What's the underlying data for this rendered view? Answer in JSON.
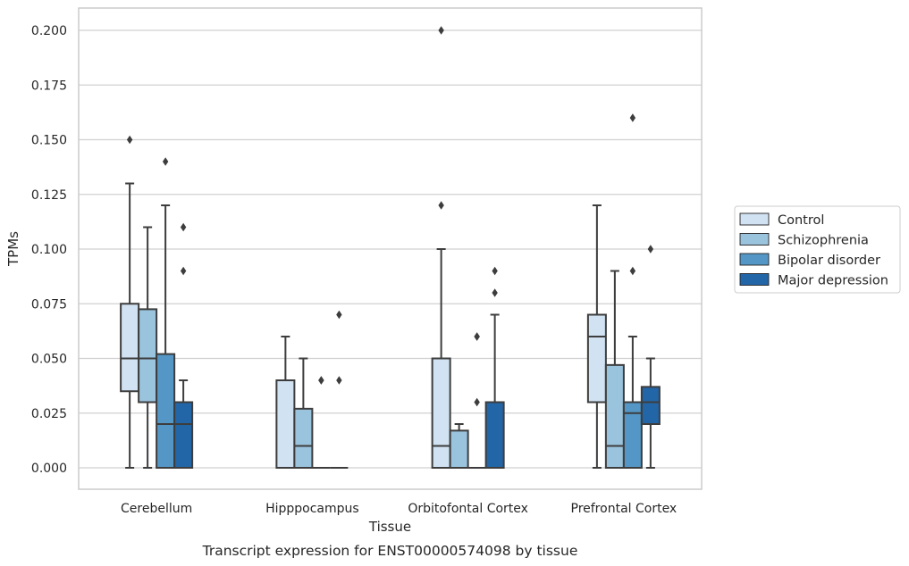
{
  "chart_data": {
    "type": "box",
    "title": "",
    "caption": "Transcript expression for ENST00000574098 by tissue",
    "xlabel": "Tissue",
    "ylabel": "TPMs",
    "ylim": [
      -0.01,
      0.21
    ],
    "yticks": [
      "0.000",
      "0.025",
      "0.050",
      "0.075",
      "0.100",
      "0.125",
      "0.150",
      "0.175",
      "0.200"
    ],
    "grid": "horizontal",
    "legend_position": "right",
    "categories": [
      "Cerebellum",
      "Hipppocampus",
      "Orbitofontal Cortex",
      "Prefrontal Cortex"
    ],
    "series": [
      {
        "name": "Control",
        "color": "#d1e2f2",
        "boxes": [
          {
            "min": 0.0,
            "q1": 0.035,
            "median": 0.05,
            "q3": 0.075,
            "max": 0.13,
            "outliers": [
              0.15
            ]
          },
          {
            "min": 0.0,
            "q1": 0.0,
            "median": 0.0,
            "q3": 0.04,
            "max": 0.06,
            "outliers": []
          },
          {
            "min": 0.0,
            "q1": 0.0,
            "median": 0.01,
            "q3": 0.05,
            "max": 0.1,
            "outliers": [
              0.12,
              0.2
            ]
          },
          {
            "min": 0.0,
            "q1": 0.03,
            "median": 0.06,
            "q3": 0.07,
            "max": 0.12,
            "outliers": []
          }
        ]
      },
      {
        "name": "Schizophrenia",
        "color": "#9ac3dd",
        "boxes": [
          {
            "min": 0.0,
            "q1": 0.03,
            "median": 0.05,
            "q3": 0.0725,
            "max": 0.11,
            "outliers": []
          },
          {
            "min": 0.0,
            "q1": 0.0,
            "median": 0.01,
            "q3": 0.027,
            "max": 0.05,
            "outliers": []
          },
          {
            "min": 0.0,
            "q1": 0.0,
            "median": 0.0,
            "q3": 0.017,
            "max": 0.02,
            "outliers": []
          },
          {
            "min": 0.0,
            "q1": 0.0,
            "median": 0.01,
            "q3": 0.047,
            "max": 0.09,
            "outliers": []
          }
        ]
      },
      {
        "name": "Bipolar disorder",
        "color": "#5497c6",
        "boxes": [
          {
            "min": 0.0,
            "q1": 0.0,
            "median": 0.02,
            "q3": 0.052,
            "max": 0.12,
            "outliers": [
              0.14
            ]
          },
          {
            "min": 0.0,
            "q1": 0.0,
            "median": 0.0,
            "q3": 0.0,
            "max": 0.0,
            "outliers": [
              0.04,
              0.04
            ]
          },
          {
            "min": 0.0,
            "q1": 0.0,
            "median": 0.0,
            "q3": 0.0,
            "max": 0.0,
            "outliers": [
              0.03,
              0.06,
              0.06
            ]
          },
          {
            "min": 0.0,
            "q1": 0.0,
            "median": 0.025,
            "q3": 0.03,
            "max": 0.06,
            "outliers": [
              0.09,
              0.16
            ]
          }
        ]
      },
      {
        "name": "Major depression",
        "color": "#2266a8",
        "boxes": [
          {
            "min": 0.0,
            "q1": 0.0,
            "median": 0.02,
            "q3": 0.03,
            "max": 0.04,
            "outliers": [
              0.09,
              0.11
            ]
          },
          {
            "min": 0.0,
            "q1": 0.0,
            "median": 0.0,
            "q3": 0.0,
            "max": 0.0,
            "outliers": [
              0.04,
              0.07
            ]
          },
          {
            "min": 0.0,
            "q1": 0.0,
            "median": 0.0,
            "q3": 0.03,
            "max": 0.07,
            "outliers": [
              0.08,
              0.09
            ]
          },
          {
            "min": 0.0,
            "q1": 0.02,
            "median": 0.03,
            "q3": 0.037,
            "max": 0.05,
            "outliers": [
              0.1
            ]
          }
        ]
      }
    ]
  }
}
